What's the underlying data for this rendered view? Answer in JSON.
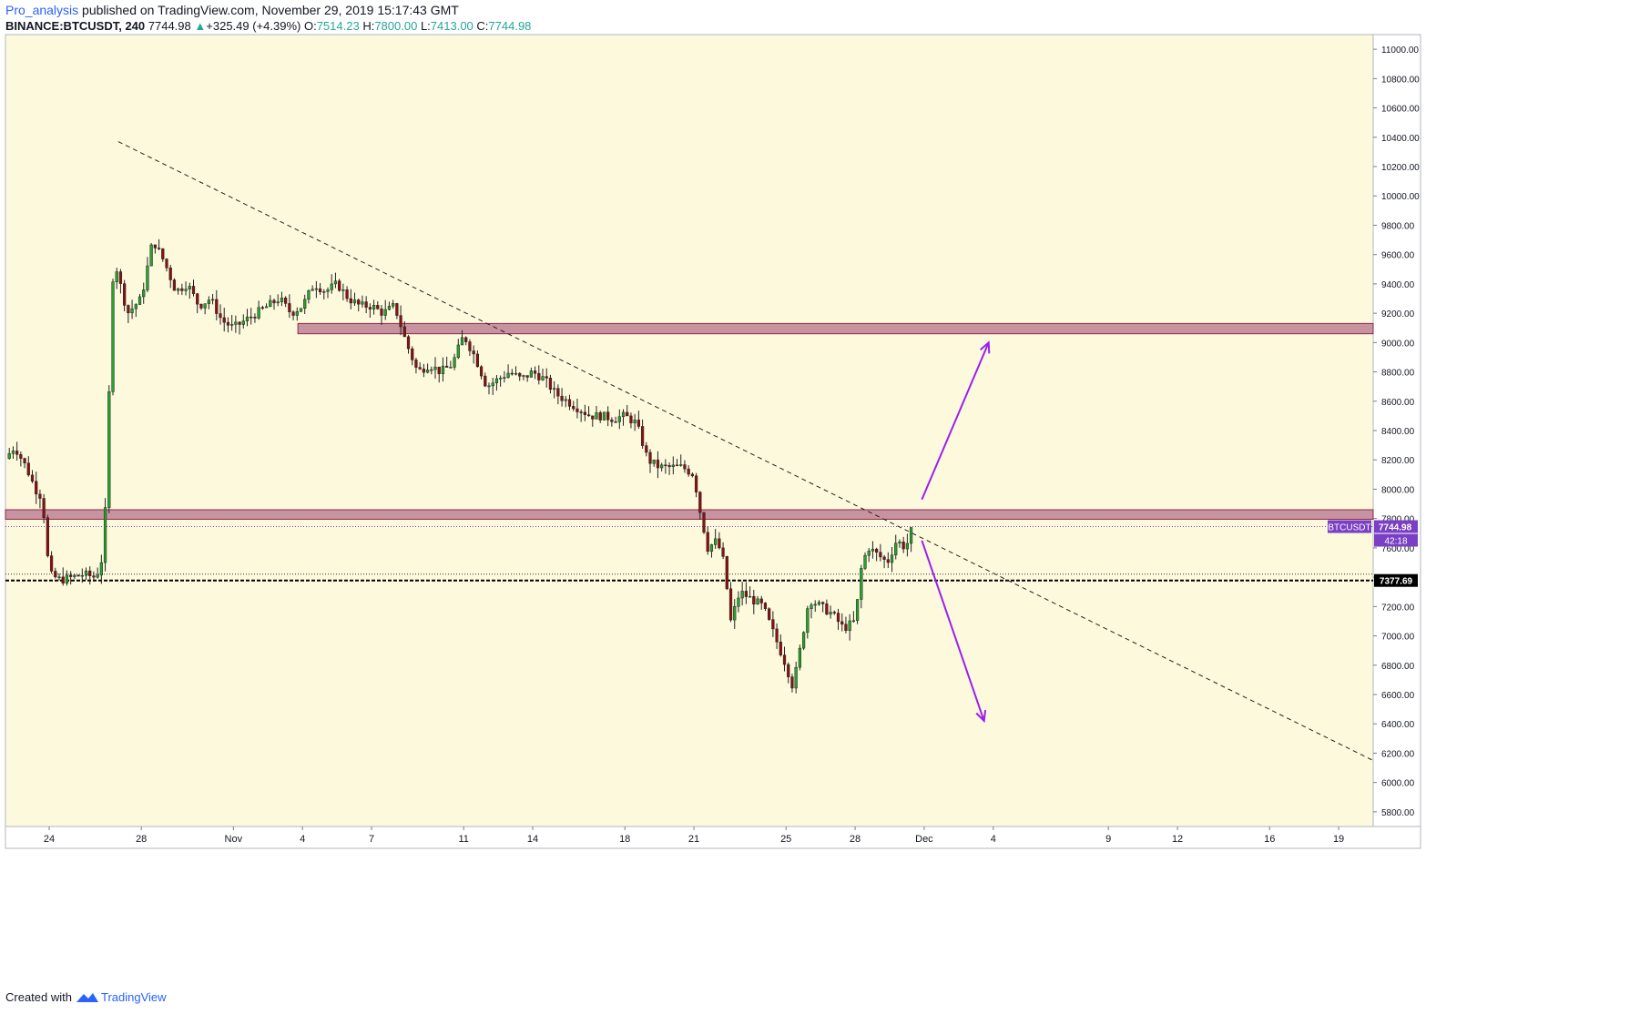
{
  "header": {
    "author": "Pro_analysis",
    "published": "published on TradingView.com, November 29, 2019 15:17:43 GMT",
    "symbol": "BINANCE:BTCUSDT, 240",
    "last": "7744.98",
    "change": "+325.49 (+4.39%)",
    "open_label": "O:",
    "open": "7514.23",
    "high_label": "H:",
    "high": "7800.00",
    "low_label": "L:",
    "low": "7413.00",
    "close_label": "C:",
    "close": "7744.98"
  },
  "footer": {
    "created_with": "Created with",
    "brand": "TradingView"
  },
  "colors": {
    "background": "#fdf9dd",
    "up": "#26a32e",
    "down": "#8b1010",
    "zone_fill": "#c2879a",
    "zone_border": "#8a2a4a",
    "arrow": "#9b1ff0",
    "price_label_bg": "#7a3fc4",
    "support_label_bg": "#000000"
  },
  "chart_data": {
    "type": "candlestick",
    "ylim": [
      5700,
      11100
    ],
    "y_ticks": [
      "5800.00",
      "6000.00",
      "6200.00",
      "6400.00",
      "6600.00",
      "6800.00",
      "7000.00",
      "7200.00",
      "7400.00",
      "7600.00",
      "7800.00",
      "8000.00",
      "8200.00",
      "8400.00",
      "8600.00",
      "8800.00",
      "9000.00",
      "9200.00",
      "9400.00",
      "9600.00",
      "9800.00",
      "10000.00",
      "10200.00",
      "10400.00",
      "10600.00",
      "10800.00",
      "11000.00"
    ],
    "x_ticks": [
      {
        "label": "24",
        "day": -7
      },
      {
        "label": "28",
        "day": -3
      },
      {
        "label": "Nov",
        "day": 1
      },
      {
        "label": "4",
        "day": 4
      },
      {
        "label": "7",
        "day": 7
      },
      {
        "label": "11",
        "day": 11
      },
      {
        "label": "14",
        "day": 14
      },
      {
        "label": "18",
        "day": 18
      },
      {
        "label": "21",
        "day": 21
      },
      {
        "label": "25",
        "day": 25
      },
      {
        "label": "28",
        "day": 28
      },
      {
        "label": "Dec",
        "day": 31
      },
      {
        "label": "4",
        "day": 34
      },
      {
        "label": "9",
        "day": 39
      },
      {
        "label": "12",
        "day": 42
      },
      {
        "label": "16",
        "day": 46
      },
      {
        "label": "19",
        "day": 49
      }
    ],
    "x_range_days": [
      -8.9,
      50.5
    ],
    "price_path": [
      [
        -8.9,
        8210
      ],
      [
        -8.5,
        8290
      ],
      [
        -8.0,
        8150
      ],
      [
        -7.6,
        8000
      ],
      [
        -7.3,
        7940
      ],
      [
        -7.0,
        7420
      ],
      [
        -6.5,
        7380
      ],
      [
        -6.0,
        7400
      ],
      [
        -5.5,
        7420
      ],
      [
        -5.0,
        7400
      ],
      [
        -4.8,
        7460
      ],
      [
        -4.6,
        7620
      ],
      [
        -4.5,
        8300
      ],
      [
        -4.4,
        8650
      ],
      [
        -4.2,
        9600
      ],
      [
        -4.0,
        9450
      ],
      [
        -3.6,
        9200
      ],
      [
        -3.0,
        9300
      ],
      [
        -2.5,
        9700
      ],
      [
        -2.0,
        9550
      ],
      [
        -1.5,
        9350
      ],
      [
        -1.0,
        9400
      ],
      [
        -0.5,
        9250
      ],
      [
        0,
        9300
      ],
      [
        0.5,
        9150
      ],
      [
        1,
        9100
      ],
      [
        1.5,
        9150
      ],
      [
        2,
        9200
      ],
      [
        2.5,
        9250
      ],
      [
        3,
        9300
      ],
      [
        3.5,
        9200
      ],
      [
        4,
        9250
      ],
      [
        4.5,
        9400
      ],
      [
        5,
        9350
      ],
      [
        5.5,
        9400
      ],
      [
        6,
        9300
      ],
      [
        6.5,
        9250
      ],
      [
        7,
        9250
      ],
      [
        7.5,
        9200
      ],
      [
        8,
        9250
      ],
      [
        8.5,
        9000
      ],
      [
        9,
        8800
      ],
      [
        9.5,
        8850
      ],
      [
        10,
        8800
      ],
      [
        10.5,
        8850
      ],
      [
        11,
        9050
      ],
      [
        11.5,
        8900
      ],
      [
        12,
        8700
      ],
      [
        12.5,
        8750
      ],
      [
        13,
        8800
      ],
      [
        13.5,
        8750
      ],
      [
        14,
        8800
      ],
      [
        14.5,
        8750
      ],
      [
        15,
        8650
      ],
      [
        15.5,
        8600
      ],
      [
        16,
        8550
      ],
      [
        16.5,
        8500
      ],
      [
        17,
        8500
      ],
      [
        17.5,
        8480
      ],
      [
        18,
        8500
      ],
      [
        18.5,
        8450
      ],
      [
        19,
        8200
      ],
      [
        19.5,
        8150
      ],
      [
        20,
        8150
      ],
      [
        20.5,
        8150
      ],
      [
        21,
        8100
      ],
      [
        21.2,
        7900
      ],
      [
        21.6,
        7600
      ],
      [
        22,
        7650
      ],
      [
        22.3,
        7500
      ],
      [
        22.6,
        7100
      ],
      [
        23,
        7300
      ],
      [
        23.5,
        7250
      ],
      [
        24,
        7200
      ],
      [
        24.5,
        7000
      ],
      [
        25,
        6800
      ],
      [
        25.3,
        6650
      ],
      [
        25.6,
        6900
      ],
      [
        26,
        7250
      ],
      [
        26.5,
        7200
      ],
      [
        27,
        7150
      ],
      [
        27.5,
        7050
      ],
      [
        28,
        7100
      ],
      [
        28.3,
        7500
      ],
      [
        28.6,
        7600
      ],
      [
        29,
        7550
      ],
      [
        29.4,
        7500
      ],
      [
        29.8,
        7650
      ],
      [
        30.2,
        7600
      ],
      [
        30.5,
        7745
      ]
    ],
    "zones": [
      {
        "name": "resistance-zone",
        "from": 9060,
        "to": 9130,
        "x_from_day": 3.8
      },
      {
        "name": "key-zone",
        "from": 7795,
        "to": 7860,
        "x_from_day": -8.9
      }
    ],
    "trendline": {
      "from": {
        "day": -4.0,
        "price": 10370
      },
      "to": {
        "day": 50.5,
        "price": 6150
      }
    },
    "support_line": 7377.69,
    "current_line": 7744.98,
    "arrows": [
      {
        "from": {
          "day": 30.9,
          "price": 7930
        },
        "to": {
          "day": 33.8,
          "price": 9000
        }
      },
      {
        "from": {
          "day": 30.9,
          "price": 7650
        },
        "to": {
          "day": 33.6,
          "price": 6420
        }
      }
    ],
    "price_label": {
      "symbol": "BTCUSDT",
      "value": "7744.98",
      "countdown": "42:18"
    },
    "support_label": "7377.69"
  }
}
